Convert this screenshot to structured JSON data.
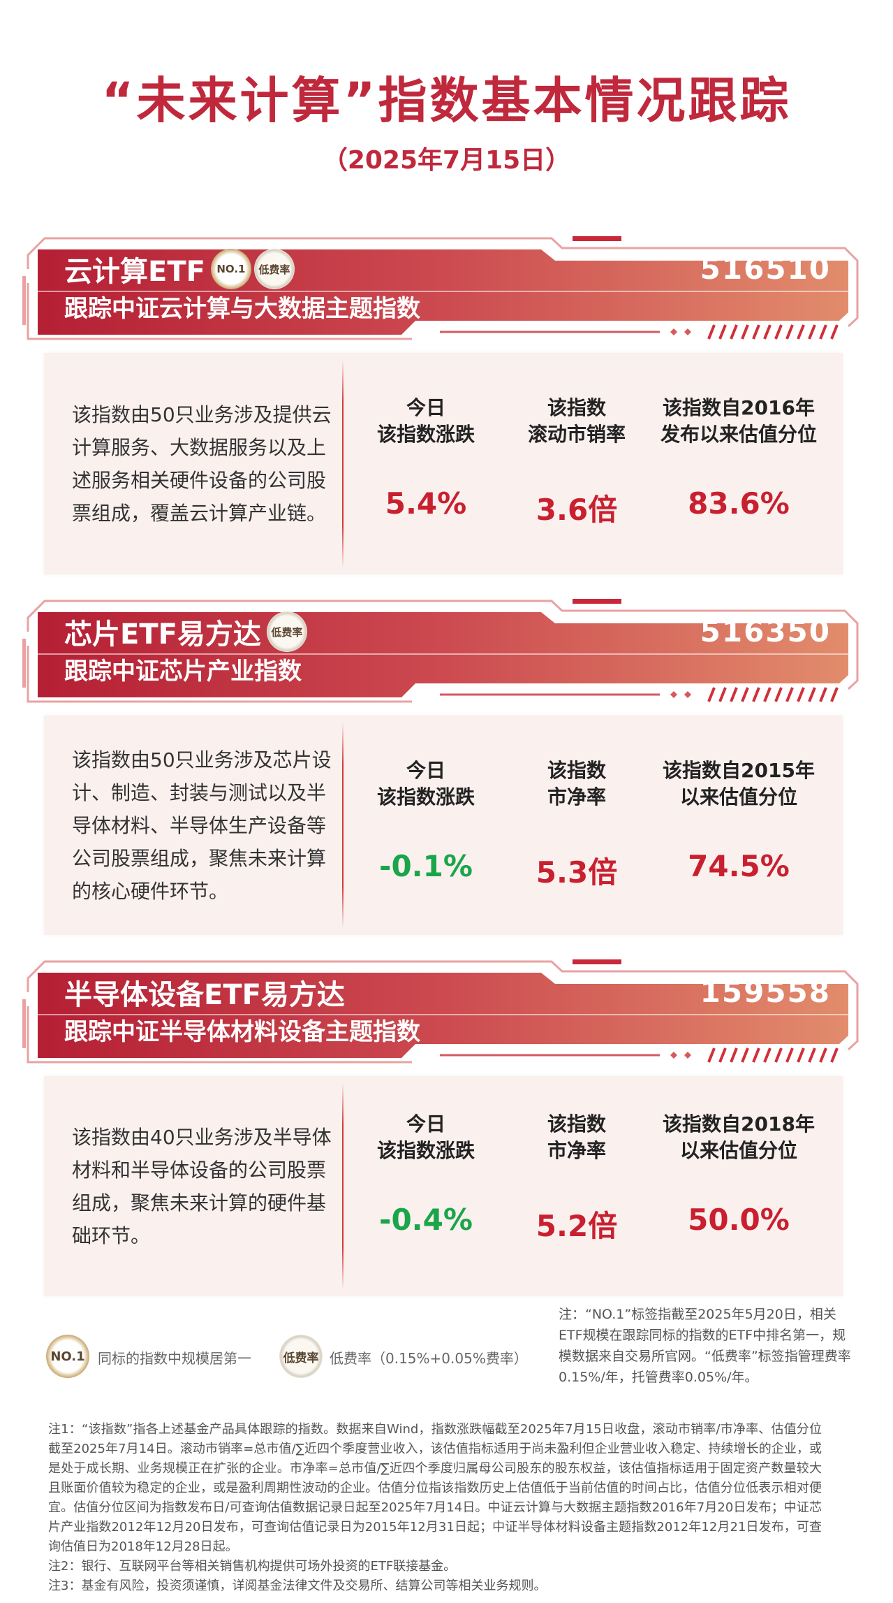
{
  "header": {
    "title": "“未来计算”指数基本情况跟踪",
    "date": "（2025年7月15日）"
  },
  "colors": {
    "primary_red": "#c0283c",
    "up_red": "#c8202f",
    "down_green": "#1aa54a",
    "card_bg": "#faf0ee"
  },
  "funds": [
    {
      "name": "云计算ETF",
      "badges": [
        "NO.1",
        "低费率"
      ],
      "code": "516510",
      "tracking": "跟踪中证云计算与大数据主题指数",
      "description": "该指数由50只业务涉及提供云计算服务、大数据服务以及上述服务相关硬件设备的公司股票组成，覆盖云计算产业链。",
      "metrics": [
        {
          "label": "今日\n该指数涨跌",
          "value": "5.4%",
          "trend": "up"
        },
        {
          "label": "该指数\n滚动市销率",
          "value": "3.6倍",
          "trend": "neutral"
        },
        {
          "label": "该指数自2016年\n发布以来估值分位",
          "value": "83.6%",
          "trend": "neutral"
        }
      ]
    },
    {
      "name": "芯片ETF易方达",
      "badges": [
        "低费率"
      ],
      "code": "516350",
      "tracking": "跟踪中证芯片产业指数",
      "description": "该指数由50只业务涉及芯片设计、制造、封装与测试以及半导体材料、半导体生产设备等公司股票组成，聚焦未来计算的核心硬件环节。",
      "metrics": [
        {
          "label": "今日\n该指数涨跌",
          "value": "-0.1%",
          "trend": "down"
        },
        {
          "label": "该指数\n市净率",
          "value": "5.3倍",
          "trend": "neutral"
        },
        {
          "label": "该指数自2015年\n以来估值分位",
          "value": "74.5%",
          "trend": "neutral"
        }
      ]
    },
    {
      "name": "半导体设备ETF易方达",
      "badges": [],
      "code": "159558",
      "tracking": "跟踪中证半导体材料设备主题指数",
      "description": "该指数由40只业务涉及半导体材料和半导体设备的公司股票组成，聚焦未来计算的硬件基础环节。",
      "metrics": [
        {
          "label": "今日\n该指数涨跌",
          "value": "-0.4%",
          "trend": "down"
        },
        {
          "label": "该指数\n市净率",
          "value": "5.2倍",
          "trend": "neutral"
        },
        {
          "label": "该指数自2018年\n以来估值分位",
          "value": "50.0%",
          "trend": "neutral"
        }
      ]
    }
  ],
  "legend": {
    "no1_badge": "NO.1",
    "no1_text": "同标的指数中规模居第一",
    "lowfee_badge": "低费率",
    "lowfee_text": "低费率（0.15%+0.05%费率）",
    "note": "注：“NO.1”标签指截至2025年5月20日，相关ETF规模在跟踪同标的指数的ETF中排名第一，规模数据来自交易所官网。“低费率”标签指管理费率0.15%/年，托管费率0.05%/年。"
  },
  "footnotes": {
    "note1": "注1：“该指数”指各上述基金产品具体跟踪的指数。数据来自Wind，指数涨跌幅截至2025年7月15日收盘，滚动市销率/市净率、估值分位截至2025年7月14日。滚动市销率=总市值/∑近四个季度营业收入，该估值指标适用于尚未盈利但企业营业收入稳定、持续增长的企业，或是处于成长期、业务规模正在扩张的企业。市净率=总市值/∑近四个季度归属母公司股东的股东权益，该估值指标适用于固定资产数量较大且账面价值较为稳定的企业，或是盈利周期性波动的企业。估值分位指该指数历史上估值低于当前估值的时间占比，估值分位低表示相对便宜。估值分位区间为指数发布日/可查询估值数据记录日起至2025年7月14日。中证云计算与大数据主题指数2016年7月20日发布；中证芯片产业指数2012年12月20日发布，可查询估值记录日为2015年12月31日起；中证半导体材料设备主题指数2012年12月21日发布，可查询估值日为2018年12月28日起。",
    "note2": "注2：银行、互联网平台等相关销售机构提供可场外投资的ETF联接基金。",
    "note3": "注3：基金有风险，投资须谨慎，详阅基金法律文件及交易所、结算公司等相关业务规则。"
  }
}
